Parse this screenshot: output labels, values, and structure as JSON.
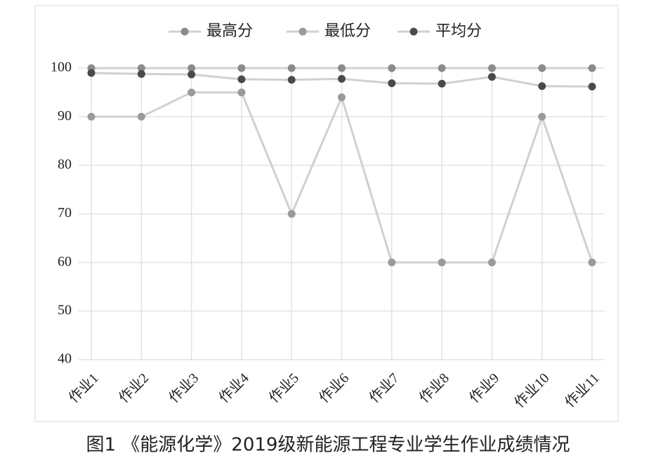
{
  "chart_data": {
    "type": "line",
    "caption": "图1  《能源化学》2019级新能源工程专业学生作业成绩情况",
    "categories": [
      "作业1",
      "作业2",
      "作业3",
      "作业4",
      "作业5",
      "作业6",
      "作业7",
      "作业8",
      "作业9",
      "作业10",
      "作业11"
    ],
    "series": [
      {
        "name": "最高分",
        "color": "#8a8a8a",
        "values": [
          100,
          100,
          100,
          100,
          100,
          100,
          100,
          100,
          100,
          100,
          100
        ]
      },
      {
        "name": "最低分",
        "color": "#9a9a9a",
        "values": [
          90,
          90,
          95,
          95,
          70,
          94,
          60,
          60,
          60,
          90,
          60
        ]
      },
      {
        "name": "平均分",
        "color": "#4a4a4a",
        "values": [
          99,
          98.8,
          98.7,
          97.7,
          97.6,
          97.8,
          96.9,
          96.8,
          98.2,
          96.3,
          96.2
        ]
      }
    ],
    "line_color": "#d0d0d0",
    "ylim": [
      40,
      100
    ],
    "yticks": [
      40,
      50,
      60,
      70,
      80,
      90,
      100
    ],
    "grid": true,
    "legend": "top"
  }
}
